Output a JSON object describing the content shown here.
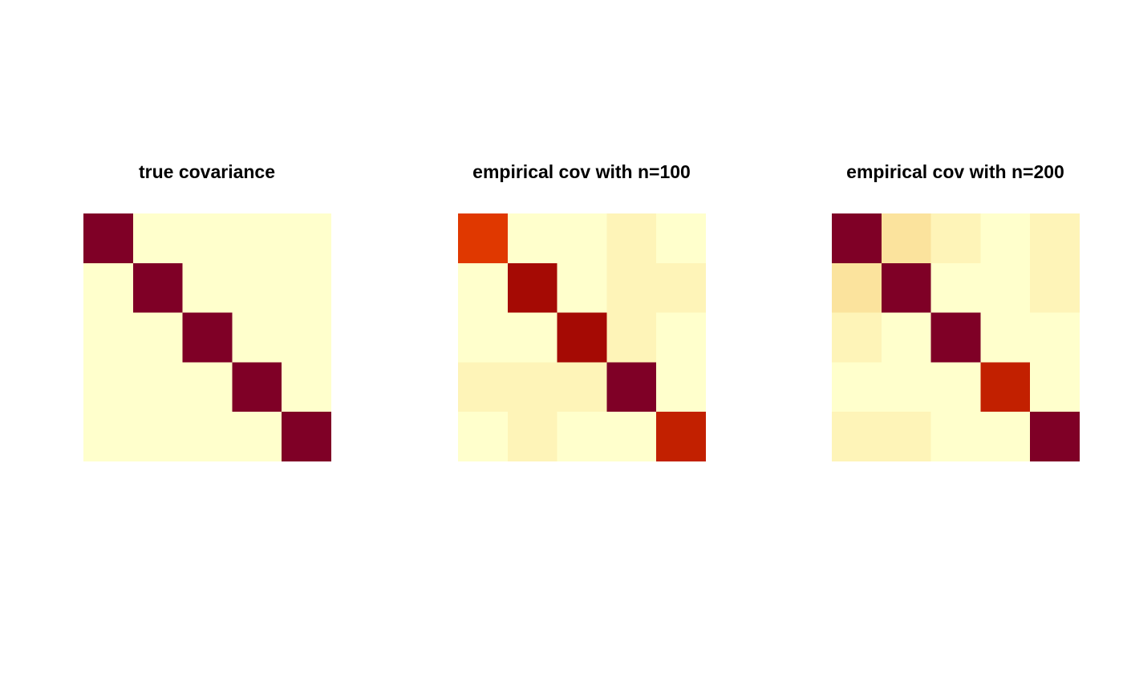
{
  "chart_data": [
    {
      "type": "heatmap",
      "title": "true covariance",
      "rows": 5,
      "cols": 5,
      "colors": [
        [
          "#7f0026",
          "#ffffcc",
          "#ffffcc",
          "#ffffcc",
          "#ffffcc"
        ],
        [
          "#ffffcc",
          "#7f0026",
          "#ffffcc",
          "#ffffcc",
          "#ffffcc"
        ],
        [
          "#ffffcc",
          "#ffffcc",
          "#7f0026",
          "#ffffcc",
          "#ffffcc"
        ],
        [
          "#ffffcc",
          "#ffffcc",
          "#ffffcc",
          "#7f0026",
          "#ffffcc"
        ],
        [
          "#ffffcc",
          "#ffffcc",
          "#ffffcc",
          "#ffffcc",
          "#7f0026"
        ]
      ]
    },
    {
      "type": "heatmap",
      "title": "empirical cov with n=100",
      "rows": 5,
      "cols": 5,
      "colors": [
        [
          "#e03800",
          "#ffffcc",
          "#ffffcc",
          "#fef4b8",
          "#ffffcc"
        ],
        [
          "#ffffcc",
          "#a50a04",
          "#ffffcc",
          "#fef4b8",
          "#fef4b8"
        ],
        [
          "#ffffcc",
          "#ffffcc",
          "#a50a04",
          "#fef4b8",
          "#ffffcc"
        ],
        [
          "#fef4b8",
          "#fef4b8",
          "#fef4b8",
          "#7f0026",
          "#ffffcc"
        ],
        [
          "#ffffcc",
          "#fef4b8",
          "#ffffcc",
          "#ffffcc",
          "#c22000"
        ]
      ]
    },
    {
      "type": "heatmap",
      "title": "empirical cov with n=200",
      "rows": 5,
      "cols": 5,
      "colors": [
        [
          "#7f0026",
          "#fbe39d",
          "#fef4b8",
          "#ffffcc",
          "#fef4b8"
        ],
        [
          "#fbe39d",
          "#7f0026",
          "#ffffcc",
          "#ffffcc",
          "#fef4b8"
        ],
        [
          "#fef4b8",
          "#ffffcc",
          "#7f0026",
          "#ffffcc",
          "#ffffcc"
        ],
        [
          "#ffffcc",
          "#ffffcc",
          "#ffffcc",
          "#c22000",
          "#ffffcc"
        ],
        [
          "#fef4b8",
          "#fef4b8",
          "#ffffcc",
          "#ffffcc",
          "#7f0026"
        ]
      ]
    }
  ]
}
